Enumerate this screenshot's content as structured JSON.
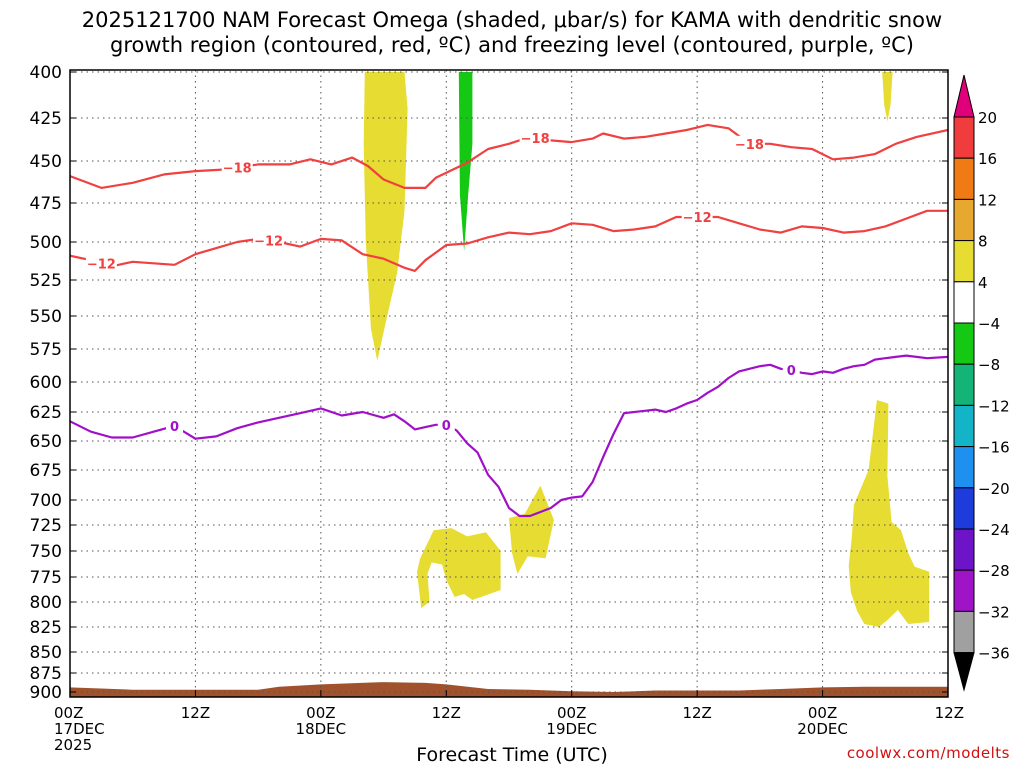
{
  "header": {
    "title_line1": "2025121700 NAM Forecast Omega (shaded, μbar/s) for KAMA with dendritic snow",
    "title_line2": "growth region (contoured, red, ºC) and freezing level (contoured, purple, ºC)"
  },
  "footer": {
    "credit": "coolwx.com/modelts"
  },
  "chart_data": {
    "type": "time-height",
    "xlabel": "Forecast Time (UTC)",
    "x_range_hours": [
      0,
      84
    ],
    "x_ticks": [
      {
        "h": 0,
        "line1": "00Z",
        "line2": "17DEC",
        "line3": "2025"
      },
      {
        "h": 12,
        "line1": "12Z",
        "line2": "",
        "line3": ""
      },
      {
        "h": 24,
        "line1": "00Z",
        "line2": "18DEC",
        "line3": ""
      },
      {
        "h": 36,
        "line1": "12Z",
        "line2": "",
        "line3": ""
      },
      {
        "h": 48,
        "line1": "00Z",
        "line2": "19DEC",
        "line3": ""
      },
      {
        "h": 60,
        "line1": "12Z",
        "line2": "",
        "line3": ""
      },
      {
        "h": 72,
        "line1": "00Z",
        "line2": "20DEC",
        "line3": ""
      },
      {
        "h": 84,
        "line1": "12Z",
        "line2": "",
        "line3": ""
      }
    ],
    "y_ticks_mb": [
      400,
      425,
      450,
      475,
      500,
      525,
      550,
      575,
      600,
      625,
      650,
      675,
      700,
      725,
      750,
      775,
      800,
      825,
      850,
      875,
      900
    ],
    "y_range_mb": [
      400,
      912
    ],
    "colorbar": {
      "labels": [
        "20",
        "16",
        "12",
        "8",
        "4",
        "−4",
        "−8",
        "−12",
        "−16",
        "−20",
        "−24",
        "−28",
        "−32",
        "−36"
      ],
      "colors": [
        "#e0007a",
        "#f03c3c",
        "#f07a14",
        "#e6a82e",
        "#e6dc32",
        "#ffffff",
        "#14c814",
        "#14b478",
        "#14b4c8",
        "#1e90f0",
        "#1e3cdc",
        "#6e14c8",
        "#a014c8",
        "#a0a0a0",
        "#000000"
      ]
    },
    "series": [
      {
        "name": "-18C isotherm",
        "color": "#f04040",
        "label": "−18",
        "label_at_hours": [
          16,
          44.5,
          65
        ],
        "points": [
          [
            0,
            459
          ],
          [
            3,
            466
          ],
          [
            6,
            463
          ],
          [
            9,
            458
          ],
          [
            12,
            456
          ],
          [
            15,
            455
          ],
          [
            18,
            452
          ],
          [
            21,
            452
          ],
          [
            23,
            449
          ],
          [
            25,
            452
          ],
          [
            27,
            448
          ],
          [
            28.5,
            453
          ],
          [
            30,
            461
          ],
          [
            32,
            466
          ],
          [
            34,
            466
          ],
          [
            35,
            460
          ],
          [
            36,
            457
          ],
          [
            38,
            451
          ],
          [
            40,
            443
          ],
          [
            42,
            440
          ],
          [
            44,
            436
          ],
          [
            46,
            438
          ],
          [
            48,
            439
          ],
          [
            50,
            437
          ],
          [
            51,
            434
          ],
          [
            53,
            437
          ],
          [
            55,
            436
          ],
          [
            57,
            434
          ],
          [
            59,
            432
          ],
          [
            61,
            429
          ],
          [
            63,
            431
          ],
          [
            65,
            440
          ],
          [
            67,
            440
          ],
          [
            69,
            442
          ],
          [
            71,
            443
          ],
          [
            73,
            449
          ],
          [
            75,
            448
          ],
          [
            77,
            446
          ],
          [
            79,
            440
          ],
          [
            81,
            436
          ],
          [
            84,
            432
          ]
        ]
      },
      {
        "name": "-12C isotherm",
        "color": "#f04040",
        "label": "−12",
        "label_at_hours": [
          3,
          19,
          60
        ],
        "points": [
          [
            0,
            509
          ],
          [
            2,
            512
          ],
          [
            4,
            516
          ],
          [
            6,
            513
          ],
          [
            8,
            514
          ],
          [
            10,
            515
          ],
          [
            12,
            508
          ],
          [
            14,
            504
          ],
          [
            16,
            500
          ],
          [
            18,
            498
          ],
          [
            20,
            500
          ],
          [
            22,
            503
          ],
          [
            24,
            498
          ],
          [
            26,
            499
          ],
          [
            28,
            508
          ],
          [
            30,
            511
          ],
          [
            32,
            517
          ],
          [
            33,
            519
          ],
          [
            34,
            512
          ],
          [
            36,
            502
          ],
          [
            38,
            501
          ],
          [
            40,
            497
          ],
          [
            42,
            494
          ],
          [
            44,
            495
          ],
          [
            46,
            493
          ],
          [
            48,
            488
          ],
          [
            50,
            489
          ],
          [
            52,
            493
          ],
          [
            54,
            492
          ],
          [
            56,
            490
          ],
          [
            58,
            484
          ],
          [
            60,
            484
          ],
          [
            62,
            484
          ],
          [
            64,
            488
          ],
          [
            66,
            492
          ],
          [
            68,
            494
          ],
          [
            70,
            490
          ],
          [
            72,
            491
          ],
          [
            74,
            494
          ],
          [
            76,
            493
          ],
          [
            78,
            490
          ],
          [
            80,
            485
          ],
          [
            82,
            480
          ],
          [
            84,
            480
          ]
        ]
      },
      {
        "name": "0C freezing level",
        "color": "#a010c8",
        "label": "0",
        "label_at_hours": [
          10,
          36,
          69
        ],
        "points": [
          [
            0,
            633
          ],
          [
            2,
            642
          ],
          [
            4,
            647
          ],
          [
            6,
            647
          ],
          [
            8,
            642
          ],
          [
            10,
            637
          ],
          [
            12,
            648
          ],
          [
            14,
            646
          ],
          [
            16,
            639
          ],
          [
            18,
            634
          ],
          [
            20,
            630
          ],
          [
            22,
            626
          ],
          [
            24,
            622
          ],
          [
            26,
            628
          ],
          [
            28,
            625
          ],
          [
            30,
            630
          ],
          [
            31,
            627
          ],
          [
            32,
            633
          ],
          [
            33,
            640
          ],
          [
            34,
            638
          ],
          [
            35,
            636
          ],
          [
            36,
            636
          ],
          [
            37,
            641
          ],
          [
            38,
            652
          ],
          [
            39,
            660
          ],
          [
            40,
            679
          ],
          [
            41,
            689
          ],
          [
            42,
            708
          ],
          [
            43,
            716
          ],
          [
            44,
            716
          ],
          [
            45,
            712
          ],
          [
            46,
            708
          ],
          [
            47,
            700
          ],
          [
            48,
            698
          ],
          [
            49,
            697
          ],
          [
            50,
            685
          ],
          [
            51,
            664
          ],
          [
            52,
            644
          ],
          [
            53,
            626
          ],
          [
            54,
            625
          ],
          [
            55,
            624
          ],
          [
            56,
            623
          ],
          [
            57,
            625
          ],
          [
            58,
            622
          ],
          [
            59,
            618
          ],
          [
            60,
            615
          ],
          [
            61,
            609
          ],
          [
            62,
            604
          ],
          [
            63,
            597
          ],
          [
            64,
            592
          ],
          [
            65,
            590
          ],
          [
            66,
            588
          ],
          [
            67,
            587
          ],
          [
            68,
            590
          ],
          [
            69,
            591
          ],
          [
            70,
            593
          ],
          [
            71,
            594
          ],
          [
            72,
            592
          ],
          [
            73,
            593
          ],
          [
            74,
            590
          ],
          [
            75,
            588
          ],
          [
            76,
            587
          ],
          [
            77,
            583
          ],
          [
            78,
            582
          ],
          [
            79,
            581
          ],
          [
            80,
            580
          ],
          [
            81,
            581
          ],
          [
            82,
            582
          ],
          [
            84,
            581
          ]
        ]
      }
    ],
    "shaded_regions": [
      {
        "omega_range": "4 to 8",
        "color": "#e6dc32",
        "polygon": [
          [
            28.2,
            400
          ],
          [
            32,
            400
          ],
          [
            32.3,
            420
          ],
          [
            32,
            480
          ],
          [
            31.3,
            520
          ],
          [
            30.2,
            555
          ],
          [
            29.4,
            584
          ],
          [
            28.8,
            560
          ],
          [
            28.3,
            500
          ],
          [
            28.1,
            440
          ],
          [
            28.2,
            400
          ]
        ]
      },
      {
        "omega_range": "-4 to -8",
        "color": "#14c814",
        "polygon": [
          [
            37.2,
            400
          ],
          [
            38.5,
            400
          ],
          [
            38.5,
            440
          ],
          [
            38.1,
            470
          ],
          [
            37.7,
            506
          ],
          [
            37.3,
            470
          ],
          [
            37.2,
            400
          ]
        ]
      },
      {
        "omega_range": "4 to 8",
        "color": "#e6dc32",
        "polygon": [
          [
            77.7,
            400
          ],
          [
            78.7,
            400
          ],
          [
            78.5,
            418
          ],
          [
            78.2,
            427
          ],
          [
            77.9,
            418
          ],
          [
            77.7,
            400
          ]
        ]
      },
      {
        "omega_range": "4 to 8",
        "color": "#e6dc32",
        "polygon": [
          [
            34.8,
            730
          ],
          [
            36.5,
            728
          ],
          [
            38,
            736
          ],
          [
            39.8,
            732
          ],
          [
            41.2,
            750
          ],
          [
            41.2,
            788
          ],
          [
            38.5,
            798
          ],
          [
            37.7,
            792
          ],
          [
            36.8,
            795
          ],
          [
            36,
            778
          ],
          [
            35.6,
            763
          ],
          [
            34.6,
            761
          ],
          [
            34.2,
            772
          ],
          [
            34.4,
            800
          ],
          [
            33.6,
            806
          ],
          [
            33.2,
            770
          ],
          [
            33.5,
            757
          ],
          [
            34.8,
            730
          ]
        ]
      },
      {
        "omega_range": "4 to 8",
        "color": "#e6dc32",
        "polygon": [
          [
            42,
            718
          ],
          [
            43.5,
            714
          ],
          [
            45,
            688
          ],
          [
            46.3,
            720
          ],
          [
            45.5,
            757
          ],
          [
            43.8,
            755
          ],
          [
            42.8,
            772
          ],
          [
            42.3,
            752
          ],
          [
            42,
            718
          ]
        ]
      },
      {
        "omega_range": "4 to 8",
        "color": "#e6dc32",
        "polygon": [
          [
            77.2,
            615
          ],
          [
            78.3,
            618
          ],
          [
            78.2,
            680
          ],
          [
            78.6,
            722
          ],
          [
            79.5,
            730
          ],
          [
            80.2,
            752
          ],
          [
            80.8,
            765
          ],
          [
            82.2,
            770
          ],
          [
            82.2,
            820
          ],
          [
            80.2,
            822
          ],
          [
            79.2,
            808
          ],
          [
            78.2,
            818
          ],
          [
            77.4,
            825
          ],
          [
            76,
            822
          ],
          [
            75.3,
            809
          ],
          [
            74.7,
            790
          ],
          [
            74.5,
            764
          ],
          [
            74.8,
            737
          ],
          [
            75,
            705
          ],
          [
            76.4,
            675
          ],
          [
            77.2,
            615
          ]
        ]
      }
    ],
    "terrain": {
      "color": "#a0522d",
      "points": [
        [
          0,
          894
        ],
        [
          6,
          897
        ],
        [
          12,
          897
        ],
        [
          18,
          897
        ],
        [
          20,
          893
        ],
        [
          24,
          890
        ],
        [
          30,
          887
        ],
        [
          34,
          888
        ],
        [
          36,
          890
        ],
        [
          40,
          896
        ],
        [
          44,
          897
        ],
        [
          48,
          899
        ],
        [
          52,
          900
        ],
        [
          56,
          898
        ],
        [
          60,
          898
        ],
        [
          64,
          898
        ],
        [
          68,
          896
        ],
        [
          72,
          894
        ],
        [
          76,
          893
        ],
        [
          80,
          893
        ],
        [
          84,
          893
        ]
      ]
    }
  }
}
